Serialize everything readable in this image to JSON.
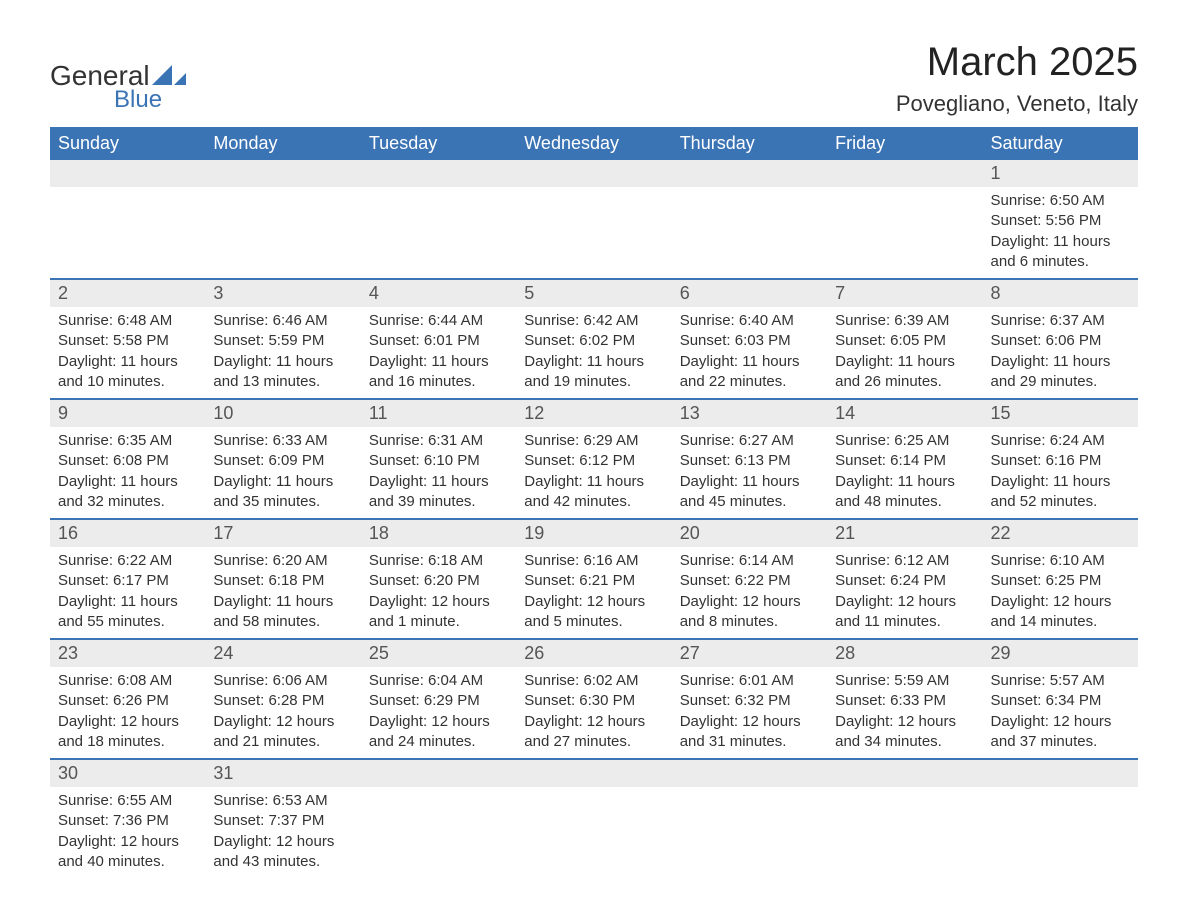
{
  "logo": {
    "text1": "General",
    "text2": "Blue",
    "accent_color": "#3b74b5"
  },
  "title": "March 2025",
  "location": "Povegliano, Veneto, Italy",
  "colors": {
    "header_bg": "#3b74b5",
    "header_text": "#ffffff",
    "daynum_bg": "#ececec",
    "row_divider": "#3b74b5",
    "body_text": "#333333"
  },
  "weekdays": [
    "Sunday",
    "Monday",
    "Tuesday",
    "Wednesday",
    "Thursday",
    "Friday",
    "Saturday"
  ],
  "weeks": [
    [
      null,
      null,
      null,
      null,
      null,
      null,
      {
        "n": "1",
        "sunrise": "6:50 AM",
        "sunset": "5:56 PM",
        "daylight": "11 hours and 6 minutes."
      }
    ],
    [
      {
        "n": "2",
        "sunrise": "6:48 AM",
        "sunset": "5:58 PM",
        "daylight": "11 hours and 10 minutes."
      },
      {
        "n": "3",
        "sunrise": "6:46 AM",
        "sunset": "5:59 PM",
        "daylight": "11 hours and 13 minutes."
      },
      {
        "n": "4",
        "sunrise": "6:44 AM",
        "sunset": "6:01 PM",
        "daylight": "11 hours and 16 minutes."
      },
      {
        "n": "5",
        "sunrise": "6:42 AM",
        "sunset": "6:02 PM",
        "daylight": "11 hours and 19 minutes."
      },
      {
        "n": "6",
        "sunrise": "6:40 AM",
        "sunset": "6:03 PM",
        "daylight": "11 hours and 22 minutes."
      },
      {
        "n": "7",
        "sunrise": "6:39 AM",
        "sunset": "6:05 PM",
        "daylight": "11 hours and 26 minutes."
      },
      {
        "n": "8",
        "sunrise": "6:37 AM",
        "sunset": "6:06 PM",
        "daylight": "11 hours and 29 minutes."
      }
    ],
    [
      {
        "n": "9",
        "sunrise": "6:35 AM",
        "sunset": "6:08 PM",
        "daylight": "11 hours and 32 minutes."
      },
      {
        "n": "10",
        "sunrise": "6:33 AM",
        "sunset": "6:09 PM",
        "daylight": "11 hours and 35 minutes."
      },
      {
        "n": "11",
        "sunrise": "6:31 AM",
        "sunset": "6:10 PM",
        "daylight": "11 hours and 39 minutes."
      },
      {
        "n": "12",
        "sunrise": "6:29 AM",
        "sunset": "6:12 PM",
        "daylight": "11 hours and 42 minutes."
      },
      {
        "n": "13",
        "sunrise": "6:27 AM",
        "sunset": "6:13 PM",
        "daylight": "11 hours and 45 minutes."
      },
      {
        "n": "14",
        "sunrise": "6:25 AM",
        "sunset": "6:14 PM",
        "daylight": "11 hours and 48 minutes."
      },
      {
        "n": "15",
        "sunrise": "6:24 AM",
        "sunset": "6:16 PM",
        "daylight": "11 hours and 52 minutes."
      }
    ],
    [
      {
        "n": "16",
        "sunrise": "6:22 AM",
        "sunset": "6:17 PM",
        "daylight": "11 hours and 55 minutes."
      },
      {
        "n": "17",
        "sunrise": "6:20 AM",
        "sunset": "6:18 PM",
        "daylight": "11 hours and 58 minutes."
      },
      {
        "n": "18",
        "sunrise": "6:18 AM",
        "sunset": "6:20 PM",
        "daylight": "12 hours and 1 minute."
      },
      {
        "n": "19",
        "sunrise": "6:16 AM",
        "sunset": "6:21 PM",
        "daylight": "12 hours and 5 minutes."
      },
      {
        "n": "20",
        "sunrise": "6:14 AM",
        "sunset": "6:22 PM",
        "daylight": "12 hours and 8 minutes."
      },
      {
        "n": "21",
        "sunrise": "6:12 AM",
        "sunset": "6:24 PM",
        "daylight": "12 hours and 11 minutes."
      },
      {
        "n": "22",
        "sunrise": "6:10 AM",
        "sunset": "6:25 PM",
        "daylight": "12 hours and 14 minutes."
      }
    ],
    [
      {
        "n": "23",
        "sunrise": "6:08 AM",
        "sunset": "6:26 PM",
        "daylight": "12 hours and 18 minutes."
      },
      {
        "n": "24",
        "sunrise": "6:06 AM",
        "sunset": "6:28 PM",
        "daylight": "12 hours and 21 minutes."
      },
      {
        "n": "25",
        "sunrise": "6:04 AM",
        "sunset": "6:29 PM",
        "daylight": "12 hours and 24 minutes."
      },
      {
        "n": "26",
        "sunrise": "6:02 AM",
        "sunset": "6:30 PM",
        "daylight": "12 hours and 27 minutes."
      },
      {
        "n": "27",
        "sunrise": "6:01 AM",
        "sunset": "6:32 PM",
        "daylight": "12 hours and 31 minutes."
      },
      {
        "n": "28",
        "sunrise": "5:59 AM",
        "sunset": "6:33 PM",
        "daylight": "12 hours and 34 minutes."
      },
      {
        "n": "29",
        "sunrise": "5:57 AM",
        "sunset": "6:34 PM",
        "daylight": "12 hours and 37 minutes."
      }
    ],
    [
      {
        "n": "30",
        "sunrise": "6:55 AM",
        "sunset": "7:36 PM",
        "daylight": "12 hours and 40 minutes."
      },
      {
        "n": "31",
        "sunrise": "6:53 AM",
        "sunset": "7:37 PM",
        "daylight": "12 hours and 43 minutes."
      },
      null,
      null,
      null,
      null,
      null
    ]
  ],
  "labels": {
    "sunrise": "Sunrise: ",
    "sunset": "Sunset: ",
    "daylight": "Daylight: "
  }
}
